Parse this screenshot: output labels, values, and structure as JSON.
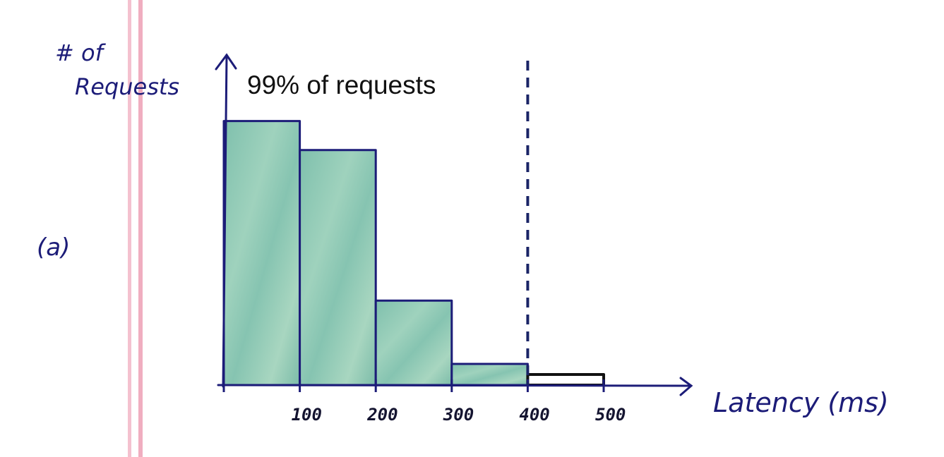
{
  "panel_label": "(a)",
  "chart_data": {
    "type": "bar",
    "bins": [
      {
        "start": 0,
        "end": 100,
        "value": 100
      },
      {
        "start": 100,
        "end": 200,
        "value": 89
      },
      {
        "start": 200,
        "end": 300,
        "value": 32
      },
      {
        "start": 300,
        "end": 400,
        "value": 8
      },
      {
        "start": 400,
        "end": 500,
        "value": 4
      }
    ],
    "xticks": [
      "100",
      "200",
      "300",
      "400",
      "500"
    ],
    "xlabel": "Latency (ms)",
    "ylabel": "# of Requests",
    "xlim": [
      0,
      500
    ],
    "ylim": [
      0,
      125
    ],
    "threshold": {
      "x": 400,
      "label": "99% of requests"
    },
    "colors": {
      "bar_fill": "#8ec9b3",
      "bar_outline": "#1c1c78",
      "tail_outline": "#111111",
      "axis": "#1c1c78",
      "threshold_line": "#1a2466",
      "margin_rule": "#f2b6c6"
    },
    "grid": false,
    "legend": "none"
  }
}
